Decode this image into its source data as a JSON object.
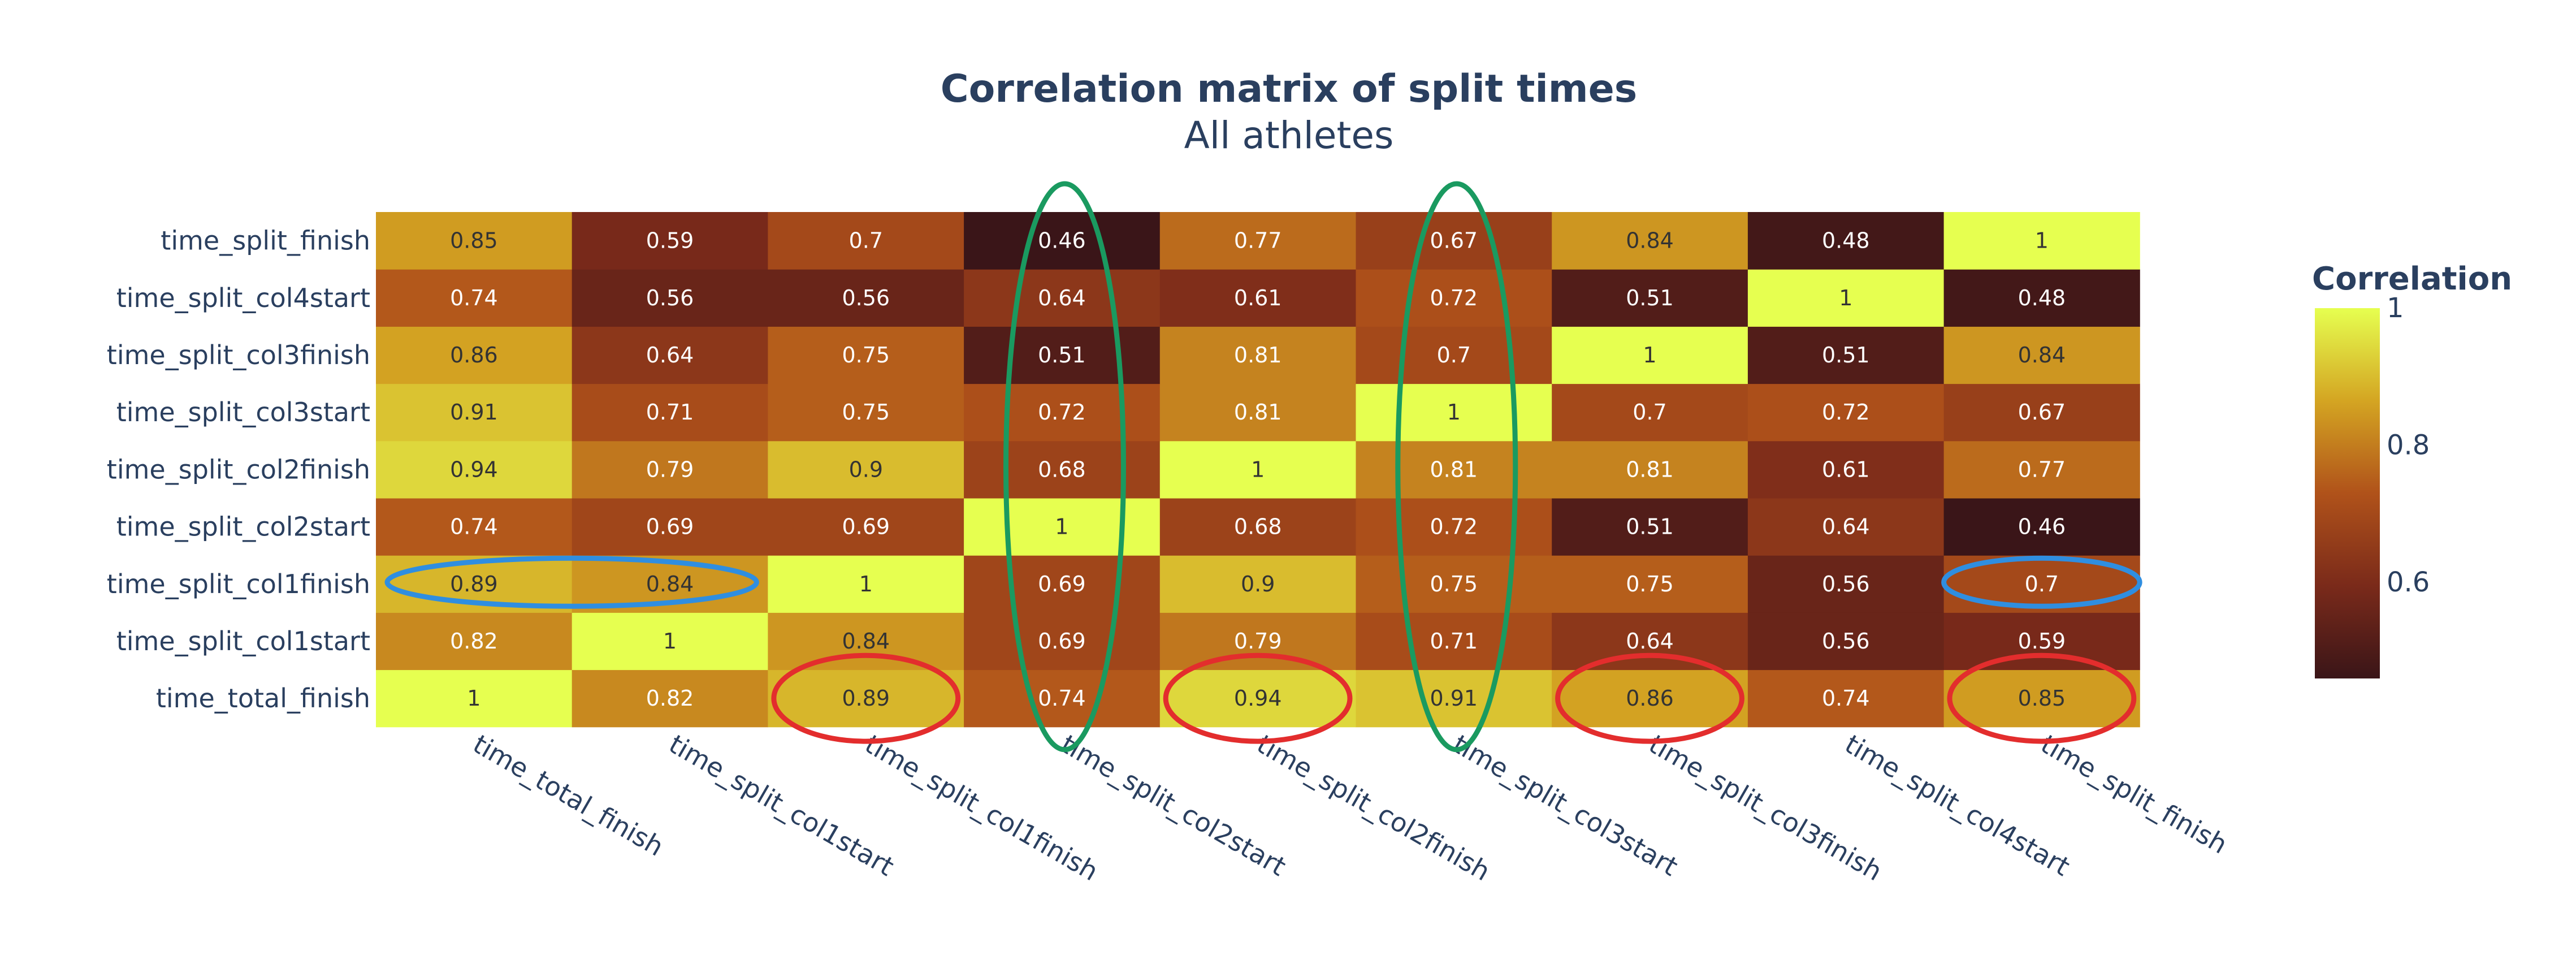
{
  "chart_data": {
    "type": "heatmap",
    "title": "Correlation matrix of split times",
    "subtitle": "All athletes",
    "x_categories": [
      "time_total_finish",
      "time_split_col1start",
      "time_split_col1finish",
      "time_split_col2start",
      "time_split_col2finish",
      "time_split_col3start",
      "time_split_col3finish",
      "time_split_col4start",
      "time_split_finish"
    ],
    "y_categories": [
      "time_total_finish",
      "time_split_col1start",
      "time_split_col1finish",
      "time_split_col2start",
      "time_split_col2finish",
      "time_split_col3start",
      "time_split_col3finish",
      "time_split_col4start",
      "time_split_finish"
    ],
    "values": [
      [
        1,
        0.82,
        0.89,
        0.74,
        0.94,
        0.91,
        0.86,
        0.74,
        0.85
      ],
      [
        0.82,
        1,
        0.84,
        0.69,
        0.79,
        0.71,
        0.64,
        0.56,
        0.59
      ],
      [
        0.89,
        0.84,
        1,
        0.69,
        0.9,
        0.75,
        0.75,
        0.56,
        0.7
      ],
      [
        0.74,
        0.69,
        0.69,
        1,
        0.68,
        0.72,
        0.51,
        0.64,
        0.46
      ],
      [
        0.94,
        0.79,
        0.9,
        0.68,
        1,
        0.81,
        0.81,
        0.61,
        0.77
      ],
      [
        0.91,
        0.71,
        0.75,
        0.72,
        0.81,
        1,
        0.7,
        0.72,
        0.67
      ],
      [
        0.86,
        0.64,
        0.75,
        0.51,
        0.81,
        0.7,
        1,
        0.51,
        0.84
      ],
      [
        0.74,
        0.56,
        0.56,
        0.64,
        0.61,
        0.72,
        0.51,
        1,
        0.48
      ],
      [
        0.85,
        0.59,
        0.7,
        0.46,
        0.77,
        0.67,
        0.84,
        0.48,
        1
      ]
    ],
    "colorscale": "Hot-like (dark maroon to yellow)",
    "colorbar": {
      "title": "Correlation",
      "range": [
        0.46,
        1
      ],
      "ticks": [
        0.6,
        0.8,
        1
      ]
    },
    "annotations": {
      "green_ellipse_columns": [
        "time_split_col2start",
        "time_split_col3start"
      ],
      "blue_ellipse_cells": [
        {
          "row": "time_split_col1finish",
          "cols": [
            "time_total_finish",
            "time_split_col1start"
          ]
        },
        {
          "row": "time_split_col1finish",
          "cols": [
            "time_split_finish"
          ]
        }
      ],
      "red_ellipse_cells": [
        {
          "row": "time_total_finish",
          "col": "time_split_col1finish"
        },
        {
          "row": "time_total_finish",
          "col": "time_split_col2finish"
        },
        {
          "row": "time_total_finish",
          "col": "time_split_col3finish"
        },
        {
          "row": "time_total_finish",
          "col": "time_split_finish"
        }
      ],
      "colors": {
        "green": "#1a9a60",
        "blue": "#2f8ee0",
        "red": "#e32d2d"
      }
    }
  }
}
